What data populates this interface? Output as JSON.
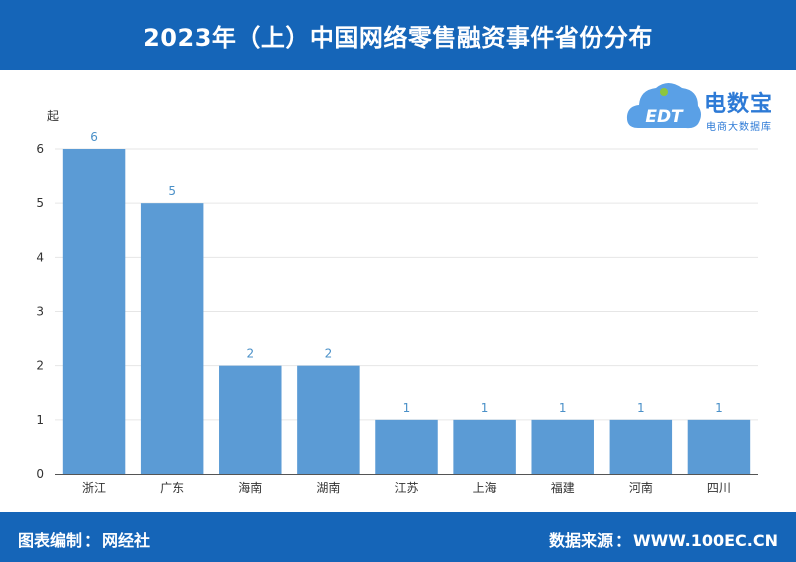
{
  "title": "2023年（上）中国网络零售融资事件省份分布",
  "footer": {
    "left_label": "图表编制",
    "left_value": "网经社",
    "right_label": "数据来源",
    "right_value": "WWW.100EC.CN",
    "sep": "："
  },
  "logo": {
    "name": "电数宝",
    "tagline": "电商大数据库",
    "mark_text": "EDT"
  },
  "colors": {
    "header_bg": "#1565b8",
    "bar": "#5b9bd5",
    "label": "#4a90c8"
  },
  "chart_data": {
    "type": "bar",
    "ylabel": "起",
    "ylim": [
      0,
      6
    ],
    "yticks": [
      0,
      1,
      2,
      3,
      4,
      5,
      6
    ],
    "grid": true,
    "categories": [
      "浙江",
      "广东",
      "海南",
      "湖南",
      "江苏",
      "上海",
      "福建",
      "河南",
      "四川"
    ],
    "values": [
      6,
      5,
      2,
      2,
      1,
      1,
      1,
      1,
      1
    ],
    "data_labels": true
  }
}
